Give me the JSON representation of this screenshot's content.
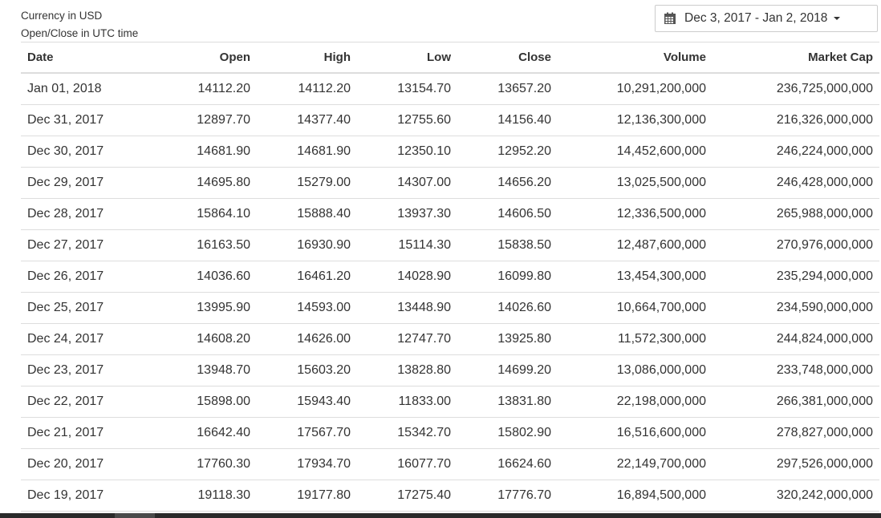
{
  "info": {
    "currency": "Currency in USD",
    "timezone": "Open/Close in UTC time"
  },
  "date_range": {
    "label": "Dec 3, 2017 - Jan 2, 2018",
    "icon": "calendar-icon"
  },
  "table": {
    "headers": [
      "Date",
      "Open",
      "High",
      "Low",
      "Close",
      "Volume",
      "Market Cap"
    ],
    "rows": [
      [
        "Jan 01, 2018",
        "14112.20",
        "14112.20",
        "13154.70",
        "13657.20",
        "10,291,200,000",
        "236,725,000,000"
      ],
      [
        "Dec 31, 2017",
        "12897.70",
        "14377.40",
        "12755.60",
        "14156.40",
        "12,136,300,000",
        "216,326,000,000"
      ],
      [
        "Dec 30, 2017",
        "14681.90",
        "14681.90",
        "12350.10",
        "12952.20",
        "14,452,600,000",
        "246,224,000,000"
      ],
      [
        "Dec 29, 2017",
        "14695.80",
        "15279.00",
        "14307.00",
        "14656.20",
        "13,025,500,000",
        "246,428,000,000"
      ],
      [
        "Dec 28, 2017",
        "15864.10",
        "15888.40",
        "13937.30",
        "14606.50",
        "12,336,500,000",
        "265,988,000,000"
      ],
      [
        "Dec 27, 2017",
        "16163.50",
        "16930.90",
        "15114.30",
        "15838.50",
        "12,487,600,000",
        "270,976,000,000"
      ],
      [
        "Dec 26, 2017",
        "14036.60",
        "16461.20",
        "14028.90",
        "16099.80",
        "13,454,300,000",
        "235,294,000,000"
      ],
      [
        "Dec 25, 2017",
        "13995.90",
        "14593.00",
        "13448.90",
        "14026.60",
        "10,664,700,000",
        "234,590,000,000"
      ],
      [
        "Dec 24, 2017",
        "14608.20",
        "14626.00",
        "12747.70",
        "13925.80",
        "11,572,300,000",
        "244,824,000,000"
      ],
      [
        "Dec 23, 2017",
        "13948.70",
        "15603.20",
        "13828.80",
        "14699.20",
        "13,086,000,000",
        "233,748,000,000"
      ],
      [
        "Dec 22, 2017",
        "15898.00",
        "15943.40",
        "11833.00",
        "13831.80",
        "22,198,000,000",
        "266,381,000,000"
      ],
      [
        "Dec 21, 2017",
        "16642.40",
        "17567.70",
        "15342.70",
        "15802.90",
        "16,516,600,000",
        "278,827,000,000"
      ],
      [
        "Dec 20, 2017",
        "17760.30",
        "17934.70",
        "16077.70",
        "16624.60",
        "22,149,700,000",
        "297,526,000,000"
      ],
      [
        "Dec 19, 2017",
        "19118.30",
        "19177.80",
        "17275.40",
        "17776.70",
        "16,894,500,000",
        "320,242,000,000"
      ]
    ]
  }
}
